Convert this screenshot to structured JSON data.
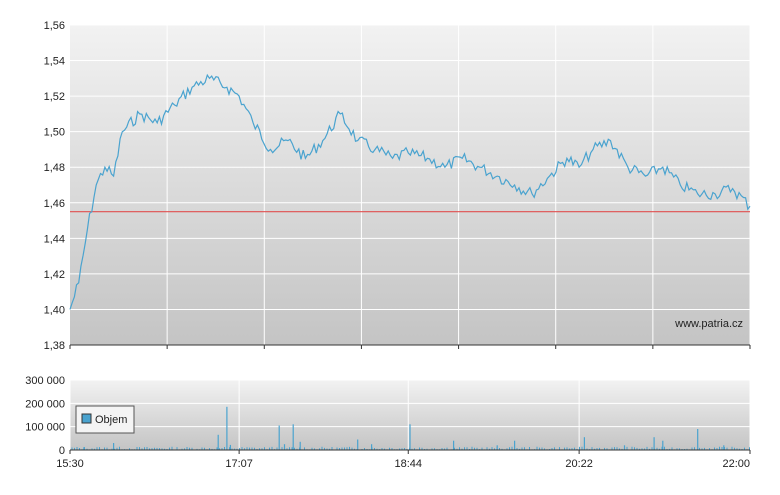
{
  "watermark": "www.patria.cz",
  "colors": {
    "price_line": "#4aa3cf",
    "reference_line": "#e05050",
    "volume_bar": "#4aa3cf",
    "grid": "#ffffff",
    "plot_bg_top": "#f2f2f2",
    "plot_bg_bottom": "#c4c4c4"
  },
  "chart_data": [
    {
      "type": "line",
      "name": "price",
      "ylim": [
        1.38,
        1.56
      ],
      "yticks": [
        "1,38",
        "1,40",
        "1,42",
        "1,44",
        "1,46",
        "1,48",
        "1,50",
        "1,52",
        "1,54",
        "1,56"
      ],
      "ytick_values": [
        1.38,
        1.4,
        1.42,
        1.44,
        1.46,
        1.48,
        1.5,
        1.52,
        1.54,
        1.56
      ],
      "reference_value": 1.455,
      "grid": true,
      "x_start": "15:30",
      "x_end": "22:00",
      "x": [
        "15:30",
        "15:35",
        "15:40",
        "15:45",
        "15:50",
        "15:55",
        "16:00",
        "16:10",
        "16:20",
        "16:30",
        "16:40",
        "16:50",
        "17:00",
        "17:07",
        "17:15",
        "17:25",
        "17:35",
        "17:45",
        "17:55",
        "18:05",
        "18:15",
        "18:25",
        "18:35",
        "18:44",
        "18:55",
        "19:05",
        "19:15",
        "19:25",
        "19:35",
        "19:45",
        "19:55",
        "20:05",
        "20:15",
        "20:22",
        "20:30",
        "20:40",
        "20:50",
        "21:00",
        "21:10",
        "21:20",
        "21:30",
        "21:40",
        "21:50",
        "22:00"
      ],
      "values": [
        1.4,
        1.415,
        1.445,
        1.47,
        1.48,
        1.475,
        1.5,
        1.51,
        1.505,
        1.515,
        1.525,
        1.53,
        1.525,
        1.52,
        1.505,
        1.49,
        1.495,
        1.485,
        1.495,
        1.51,
        1.495,
        1.49,
        1.485,
        1.488,
        1.485,
        1.48,
        1.485,
        1.48,
        1.475,
        1.47,
        1.465,
        1.475,
        1.485,
        1.48,
        1.49,
        1.495,
        1.48,
        1.475,
        1.48,
        1.47,
        1.465,
        1.465,
        1.468,
        1.458
      ]
    },
    {
      "type": "bar",
      "name": "volume",
      "legend": "Objem",
      "ylim": [
        0,
        300000
      ],
      "yticks": [
        "0",
        "100 000",
        "200 000",
        "300 000"
      ],
      "ytick_values": [
        0,
        100000,
        200000,
        300000
      ],
      "xticks": [
        "15:30",
        "17:07",
        "18:44",
        "20:22",
        "22:00"
      ],
      "grid": true,
      "spikes": [
        {
          "x": "15:38",
          "value": 12000
        },
        {
          "x": "15:55",
          "value": 30000
        },
        {
          "x": "16:55",
          "value": 65000
        },
        {
          "x": "17:00",
          "value": 185000
        },
        {
          "x": "17:02",
          "value": 22000
        },
        {
          "x": "17:30",
          "value": 105000
        },
        {
          "x": "17:33",
          "value": 25000
        },
        {
          "x": "17:38",
          "value": 110000
        },
        {
          "x": "17:42",
          "value": 35000
        },
        {
          "x": "18:15",
          "value": 45000
        },
        {
          "x": "18:23",
          "value": 25000
        },
        {
          "x": "18:45",
          "value": 110000
        },
        {
          "x": "19:10",
          "value": 40000
        },
        {
          "x": "19:35",
          "value": 20000
        },
        {
          "x": "19:45",
          "value": 40000
        },
        {
          "x": "20:25",
          "value": 55000
        },
        {
          "x": "20:48",
          "value": 20000
        },
        {
          "x": "21:05",
          "value": 55000
        },
        {
          "x": "21:10",
          "value": 40000
        },
        {
          "x": "21:30",
          "value": 90000
        },
        {
          "x": "21:45",
          "value": 20000
        }
      ]
    }
  ]
}
